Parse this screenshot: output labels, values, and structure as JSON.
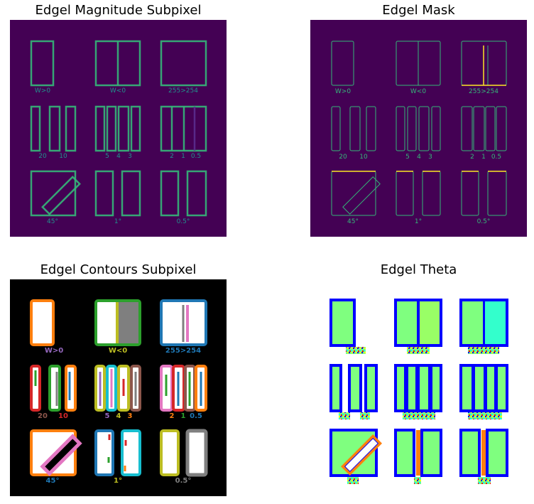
{
  "titles": {
    "magnitude": "Edgel Magnitude Subpixel",
    "mask": "Edgel Mask",
    "contours": "Edgel Contours Subpixel",
    "theta": "Edgel Theta"
  },
  "labels": {
    "row1": [
      "W>0",
      "W<0",
      "255>254"
    ],
    "row2": [
      "20",
      "10",
      "5",
      "4",
      "3",
      "2",
      "1",
      "0.5"
    ],
    "row3": [
      "45°",
      "1°",
      "0.5°"
    ]
  },
  "colors": {
    "viridis_bg": "#440154",
    "edge_cyan": "#35b779",
    "edge_teal": "#21918c",
    "edge_yellow": "#fde725",
    "orange": "#ff7f0e",
    "green": "#2ca02c",
    "blue": "#1f77b4",
    "pink": "#e377c2",
    "olive": "#bcbd22",
    "cyan": "#17becf",
    "red": "#d62728",
    "brown": "#8c564b",
    "purple": "#9467bd",
    "gray": "#7f7f7f",
    "theta_green": "#7fff7f",
    "theta_blue": "#0000ff",
    "theta_cyan": "#00ffff"
  }
}
